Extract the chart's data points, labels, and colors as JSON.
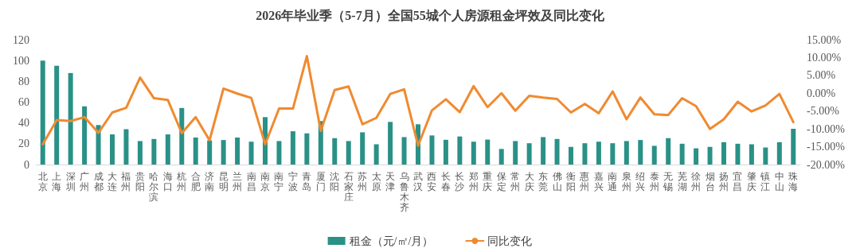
{
  "chart_data": {
    "type": "bar",
    "title": "2026年毕业季（5-7月）全国55城个人房源租金坪效及同比变化",
    "categories": [
      "北京",
      "上海",
      "深圳",
      "广州",
      "成都",
      "大连",
      "福州",
      "贵阳",
      "哈尔滨",
      "海口",
      "杭州",
      "合肥",
      "济南",
      "昆明",
      "兰州",
      "南昌",
      "南京",
      "南宁",
      "宁波",
      "青岛",
      "厦门",
      "沈阳",
      "石家庄",
      "苏州",
      "太原",
      "天津",
      "乌鲁木齐",
      "武汉",
      "西安",
      "长春",
      "长沙",
      "郑州",
      "重庆",
      "保定",
      "常州",
      "大庆",
      "东莞",
      "佛山",
      "衡阳",
      "惠州",
      "嘉兴",
      "南通",
      "泉州",
      "绍兴",
      "泰州",
      "无锡",
      "芜湖",
      "徐州",
      "烟台",
      "扬州",
      "宜昌",
      "肇庆",
      "镇江",
      "中山",
      "珠海"
    ],
    "series": [
      {
        "name": "租金（元/㎡/月）",
        "color": "#2a9187",
        "values": [
          100,
          95,
          88,
          56,
          38,
          29,
          34,
          22.6,
          24.6,
          29,
          54.4,
          26,
          23.3,
          23.6,
          26,
          22,
          45.6,
          22.6,
          32,
          30,
          41.8,
          25.4,
          22.6,
          31,
          19.5,
          41,
          26.4,
          38.7,
          28,
          23.8,
          27,
          22,
          24,
          15,
          22.6,
          20.5,
          26.4,
          24.6,
          17,
          20.5,
          22,
          20.5,
          22.6,
          23.6,
          18,
          25.4,
          20,
          15.6,
          17,
          21.5,
          20,
          19.5,
          16.4,
          21.5,
          34.4
        ]
      },
      {
        "name": "同比变化",
        "type": "line",
        "axis": "y2",
        "color": "#f08a30",
        "values": [
          -14.3,
          -7.5,
          -7.8,
          -6.7,
          -11.1,
          -5.4,
          -4.1,
          4.4,
          -1.4,
          -1.9,
          -11.2,
          -6.7,
          -13.2,
          1.3,
          -0.1,
          -1.3,
          -14.3,
          -4.3,
          -4.3,
          10.4,
          -10.6,
          0.9,
          1.9,
          -8.7,
          -6.9,
          -0.2,
          1.1,
          -14.7,
          -4.8,
          -1.7,
          -5.3,
          2.0,
          -3.9,
          0.0,
          -4.9,
          -0.7,
          -1.2,
          -1.6,
          -5.4,
          -3.0,
          -5.6,
          0.5,
          -7.3,
          -1.2,
          -5.9,
          -6.1,
          -1.4,
          -3.6,
          -10.0,
          -7.3,
          -2.4,
          -5.1,
          -3.4,
          -0.2,
          -8.1
        ]
      }
    ],
    "ylim": [
      0,
      120
    ],
    "yticks": [
      0,
      20,
      40,
      60,
      80,
      100,
      120
    ],
    "y2lim": [
      -20,
      15
    ],
    "y2ticks": [
      {
        "value": -20,
        "label": "-20.00%"
      },
      {
        "value": -15,
        "label": "-15.00%"
      },
      {
        "value": -10,
        "label": "-10.00%"
      },
      {
        "value": -5,
        "label": "-5.00%"
      },
      {
        "value": 0,
        "label": "0.00%"
      },
      {
        "value": 5,
        "label": "5.00%"
      },
      {
        "value": 10,
        "label": "10.00%"
      },
      {
        "value": 15,
        "label": "15.00%"
      }
    ],
    "grid": false,
    "legend": "bottom",
    "marker": "none",
    "line_style": "solid"
  }
}
